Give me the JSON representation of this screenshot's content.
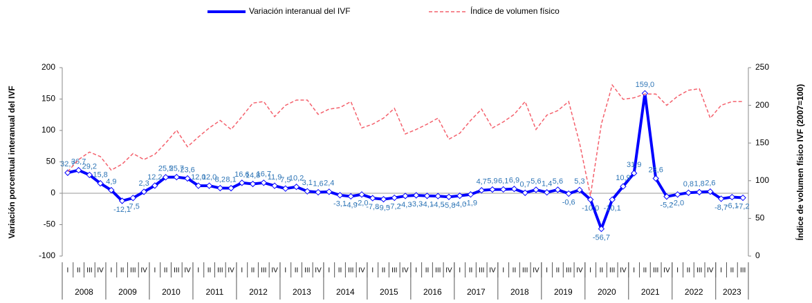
{
  "chart_data": {
    "type": "line",
    "y_label": "Variación porcentual interanual del IVF",
    "y2_label": "Índice de volumen físico IVF (2007=100)",
    "categories": [
      "I",
      "II",
      "III",
      "IV",
      "I",
      "II",
      "III",
      "IV",
      "I",
      "II",
      "III",
      "IV",
      "I",
      "II",
      "III",
      "IV",
      "I",
      "II",
      "III",
      "IV",
      "I",
      "II",
      "III",
      "IV",
      "I",
      "II",
      "III",
      "IV",
      "I",
      "II",
      "III",
      "IV",
      "I",
      "II",
      "III",
      "IV",
      "I",
      "II",
      "III",
      "IV",
      "I",
      "II",
      "III",
      "IV",
      "I",
      "II",
      "III",
      "IV",
      "I",
      "II",
      "III",
      "IV",
      "I",
      "II",
      "III",
      "IV",
      "I",
      "II",
      "III",
      "IV",
      "I",
      "II",
      "III"
    ],
    "years": [
      "2008",
      "2009",
      "2010",
      "2011",
      "2012",
      "2013",
      "2014",
      "2015",
      "2016",
      "2017",
      "2018",
      "2019",
      "2020",
      "2021",
      "2022",
      "2023"
    ],
    "ylim": [
      -100,
      200
    ],
    "yticks": [
      -100,
      -50,
      0,
      50,
      100,
      150,
      200
    ],
    "y2lim": [
      0,
      250
    ],
    "y2ticks": [
      0,
      50,
      100,
      150,
      200,
      250
    ],
    "series": [
      {
        "name": "Variación interanual del IVF",
        "color": "#0000ff",
        "values": [
          32.7,
          36.7,
          29.2,
          15.8,
          4.9,
          -12.1,
          -7.5,
          2.3,
          12.2,
          25.5,
          25.7,
          23.6,
          12.0,
          12.0,
          8.2,
          8.1,
          16.6,
          14.8,
          16.7,
          11.9,
          7.5,
          10.2,
          3.1,
          1.6,
          2.4,
          -3.1,
          -4.9,
          -2.0,
          -7.8,
          -9.5,
          -7.2,
          -4.3,
          -3.3,
          -4.1,
          -4.5,
          -5.8,
          -4.0,
          -1.9,
          4.7,
          5.9,
          6.1,
          6.9,
          0.7,
          5.6,
          1.4,
          5.6,
          -0.6,
          5.3,
          -10.0,
          -56.7,
          -10.1,
          10.9,
          31.9,
          159.0,
          23.6,
          -5.2,
          -2.0,
          0.8,
          1.8,
          2.6,
          -8.7,
          -6.1,
          -7.2
        ],
        "value_labels": [
          "32,7",
          "36,7",
          "29,2",
          "15,8",
          "4,9",
          "-12,1",
          "-7,5",
          "2,3",
          "12,2",
          "25,5",
          "25,7",
          "23,6",
          "12,0",
          "12,0",
          "8,2",
          "8,1",
          "16,6",
          "14,8",
          "16,7",
          "11,9",
          "7,5",
          "10,2",
          "3,1",
          "1,6",
          "2,4",
          "-3,1",
          "-4,9",
          "-2,0",
          "-7,8",
          "-9,5",
          "-7,2",
          "-4,3",
          "-3,3",
          "-4,1",
          "-4,5",
          "-5,8",
          "-4,0",
          "-1,9",
          "4,7",
          "5,9",
          "6,1",
          "6,9",
          "0,7",
          "5,6",
          "1,4",
          "5,6",
          "-0,6",
          "5,3",
          "-10,0",
          "-56,7",
          "-10,1",
          "10,9",
          "31,9",
          "159,0",
          "23,6",
          "-5,2",
          "-2,0",
          "0,8",
          "1,8",
          "2,6",
          "-8,7",
          "-6,1",
          "-7,2"
        ]
      },
      {
        "name": "Índice de volumen físico",
        "color": "#f4606c",
        "axis": "y2",
        "values": [
          112,
          128,
          138,
          132,
          114,
          122,
          136,
          128,
          135,
          150,
          167,
          145,
          158,
          170,
          180,
          168,
          185,
          203,
          205,
          185,
          200,
          207,
          207,
          188,
          195,
          197,
          205,
          170,
          175,
          183,
          196,
          162,
          168,
          175,
          183,
          155,
          163,
          180,
          195,
          170,
          178,
          188,
          205,
          168,
          187,
          193,
          205,
          150,
          80,
          175,
          227,
          208,
          210,
          215,
          215,
          200,
          212,
          220,
          222,
          183,
          200,
          205,
          205
        ]
      }
    ]
  }
}
